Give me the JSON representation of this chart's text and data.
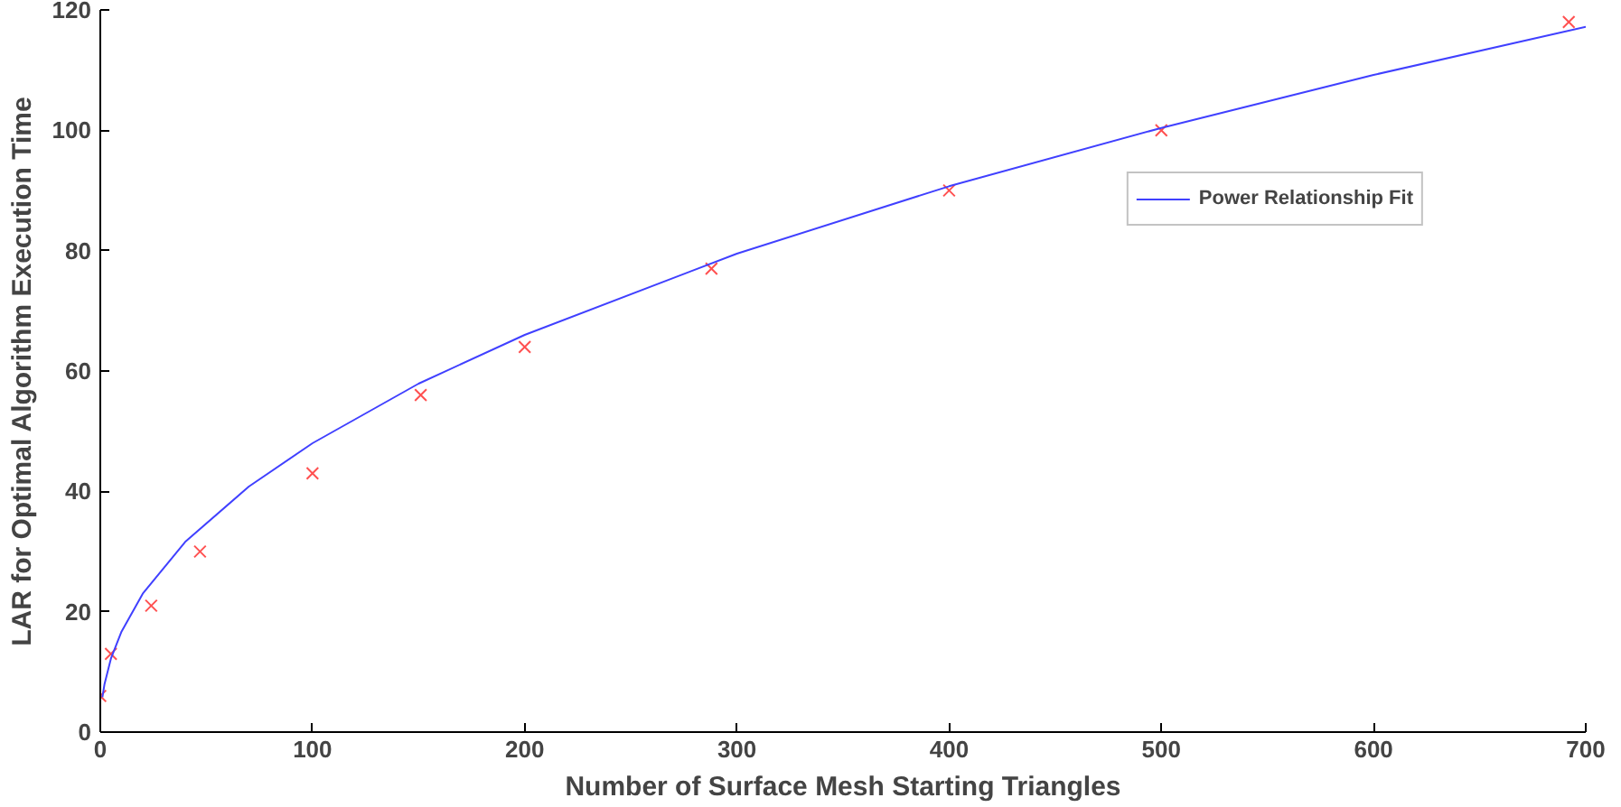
{
  "chart_data": {
    "type": "scatter",
    "xlabel": "Number of Surface Mesh Starting Triangles",
    "ylabel": "LAR for Optimal Algorithm Execution Time",
    "xlim": [
      0,
      700
    ],
    "ylim": [
      0,
      120
    ],
    "xticks": [
      0,
      100,
      200,
      300,
      400,
      500,
      600,
      700
    ],
    "yticks": [
      0,
      20,
      40,
      60,
      80,
      100,
      120
    ],
    "grid": false,
    "legend": "top right",
    "series": [
      {
        "marker": "cross",
        "color": "#ff5050",
        "x": [
          0,
          5,
          24,
          47,
          100,
          151,
          200,
          288,
          400,
          500,
          692
        ],
        "values": [
          6,
          13,
          21,
          30,
          43,
          56,
          64,
          77,
          90,
          100,
          118
        ]
      },
      {
        "type": "line",
        "name": "Power Relationship Fit",
        "color": "#4040ff",
        "line_style": "solid",
        "x": [
          1,
          2,
          5,
          10,
          20,
          40,
          70,
          100,
          150,
          200,
          300,
          400,
          500,
          600,
          700
        ],
        "values": [
          5.8,
          8.0,
          12.2,
          16.7,
          23.0,
          31.6,
          40.8,
          48.0,
          57.9,
          66.0,
          79.5,
          90.7,
          100.4,
          109.2,
          117.2
        ]
      }
    ]
  }
}
